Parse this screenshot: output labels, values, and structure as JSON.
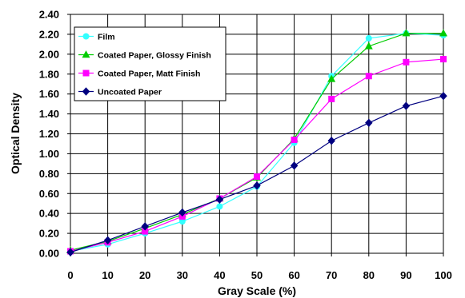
{
  "chart_data": {
    "type": "line",
    "xlabel": "Gray Scale (%)",
    "ylabel": "Optical Density",
    "x": [
      0,
      10,
      20,
      30,
      40,
      50,
      60,
      70,
      80,
      90,
      100
    ],
    "xlim": [
      0,
      100
    ],
    "ylim": [
      0,
      2.4
    ],
    "x_ticks": [
      "0",
      "10",
      "20",
      "30",
      "40",
      "50",
      "60",
      "70",
      "80",
      "90",
      "100"
    ],
    "y_ticks": [
      "0.00",
      "0.20",
      "0.40",
      "0.60",
      "0.80",
      "1.00",
      "1.20",
      "1.40",
      "1.60",
      "1.80",
      "2.00",
      "2.20",
      "2.40"
    ],
    "grid": true,
    "legend_position": "top-left",
    "series": [
      {
        "name": "Film",
        "color": "#33ffff",
        "marker": "circle",
        "values": [
          0.02,
          0.09,
          0.2,
          0.32,
          0.47,
          0.67,
          1.11,
          1.78,
          2.16,
          2.21,
          2.19
        ]
      },
      {
        "name": "Coated Paper, Glossy Finish",
        "color": "#00cc00",
        "marker": "triangle",
        "values": [
          0.03,
          0.12,
          0.25,
          0.39,
          0.55,
          0.76,
          1.15,
          1.75,
          2.08,
          2.21,
          2.21
        ]
      },
      {
        "name": "Coated Paper, Matt Finish",
        "color": "#ff00ff",
        "marker": "square",
        "values": [
          0.02,
          0.11,
          0.22,
          0.37,
          0.55,
          0.77,
          1.14,
          1.55,
          1.78,
          1.92,
          1.95
        ]
      },
      {
        "name": "Uncoated Paper",
        "color": "#000080",
        "marker": "diamond",
        "values": [
          0.01,
          0.13,
          0.27,
          0.41,
          0.54,
          0.68,
          0.88,
          1.13,
          1.31,
          1.48,
          1.58
        ]
      }
    ]
  }
}
